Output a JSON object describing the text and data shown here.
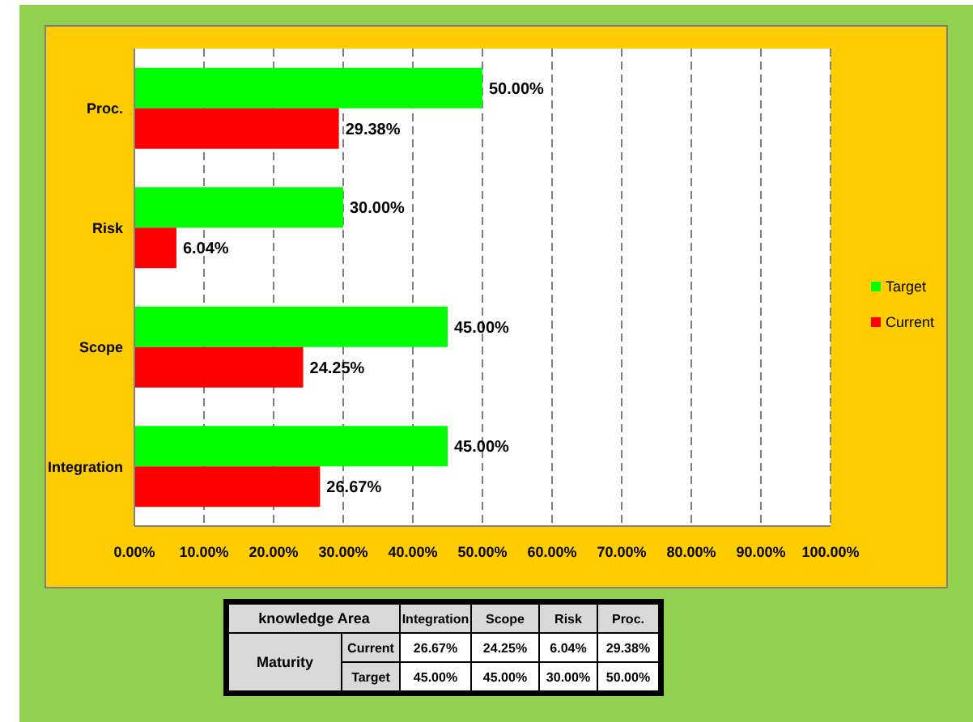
{
  "chart_data": {
    "type": "bar",
    "orientation": "horizontal",
    "categories": [
      "Proc.",
      "Risk",
      "Scope",
      "Integration"
    ],
    "series": [
      {
        "name": "Target",
        "color": "#00ff00",
        "values": [
          50,
          30,
          45,
          45
        ],
        "value_labels": [
          "50.00%",
          "30.00%",
          "45.00%",
          "45.00%"
        ]
      },
      {
        "name": "Current",
        "color": "#ff0000",
        "values": [
          29.38,
          6.04,
          24.25,
          26.67
        ],
        "value_labels": [
          "29.38%",
          "6.04%",
          "24.25%",
          "26.67%"
        ]
      }
    ],
    "xlim": [
      0,
      100
    ],
    "xticks": [
      {
        "value": 0,
        "label": "0.00%"
      },
      {
        "value": 10,
        "label": "10.00%"
      },
      {
        "value": 20,
        "label": "20.00%"
      },
      {
        "value": 30,
        "label": "30.00%"
      },
      {
        "value": 40,
        "label": "40.00%"
      },
      {
        "value": 50,
        "label": "50.00%"
      },
      {
        "value": 60,
        "label": "60.00%"
      },
      {
        "value": 70,
        "label": "70.00%"
      },
      {
        "value": 80,
        "label": "80.00%"
      },
      {
        "value": 90,
        "label": "90.00%"
      },
      {
        "value": 100,
        "label": "100.00%"
      }
    ],
    "grid": "x",
    "legend": "right",
    "line_style": "dashed",
    "annotations": [
      "knowledge Area",
      "Maturity"
    ]
  }
}
